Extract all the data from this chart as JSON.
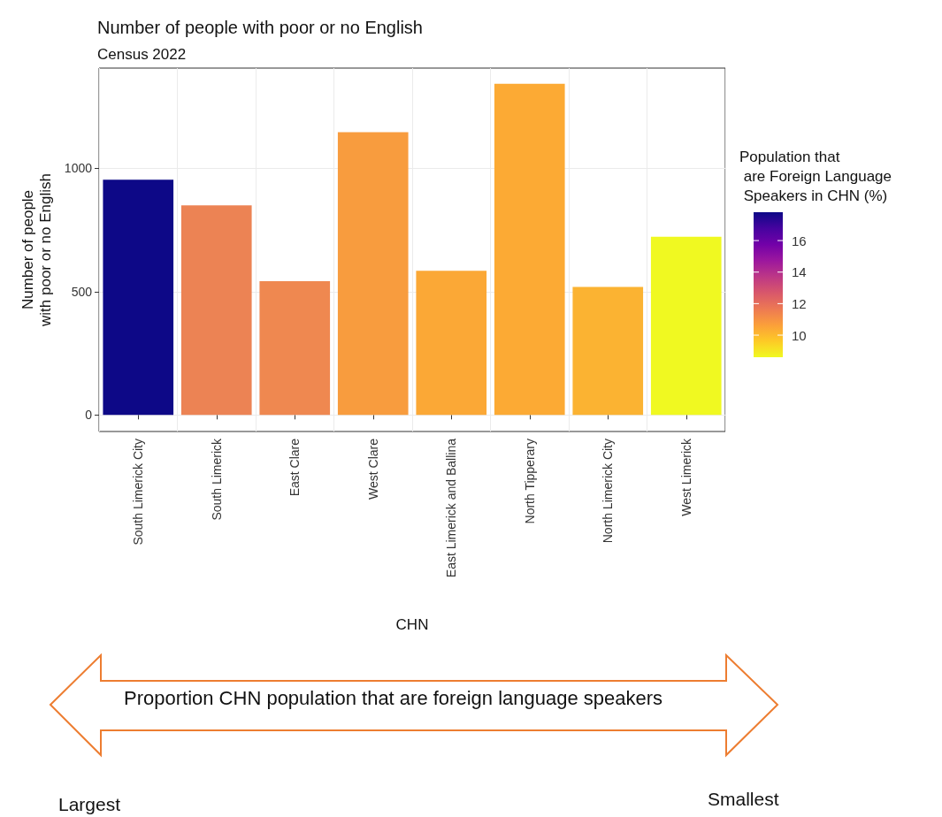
{
  "chart_data": {
    "type": "bar",
    "title": "Number of people with poor or no English",
    "subtitle": "Census 2022",
    "xlabel": "CHN",
    "ylabel": "Number of people\nwith poor or no English",
    "clabel": "Population that\n are Foreign Language\n Speakers in CHN (%)",
    "categories": [
      "South Limerick City",
      "South Limerick",
      "East Clare",
      "West Clare",
      "East Limerick and Ballina",
      "North Tipperary",
      "North Limerick City",
      "West Limerick"
    ],
    "values": [
      954,
      850,
      543,
      1147,
      585,
      1343,
      519,
      723
    ],
    "colors": [
      "#0d0887",
      "#ec8354",
      "#ef8850",
      "#f89c3e",
      "#fba836",
      "#fcaa34",
      "#fbb332",
      "#f0f921"
    ],
    "ylim": [
      -67,
      1407
    ],
    "yticks": [
      0,
      500,
      1000
    ],
    "grid": true,
    "clim": [
      8.6,
      17.8
    ],
    "cticks": [
      10,
      12,
      14,
      16
    ],
    "annotations": [
      "Proportion CHN population that are foreign language speakers",
      "Largest",
      "Smallest"
    ]
  }
}
